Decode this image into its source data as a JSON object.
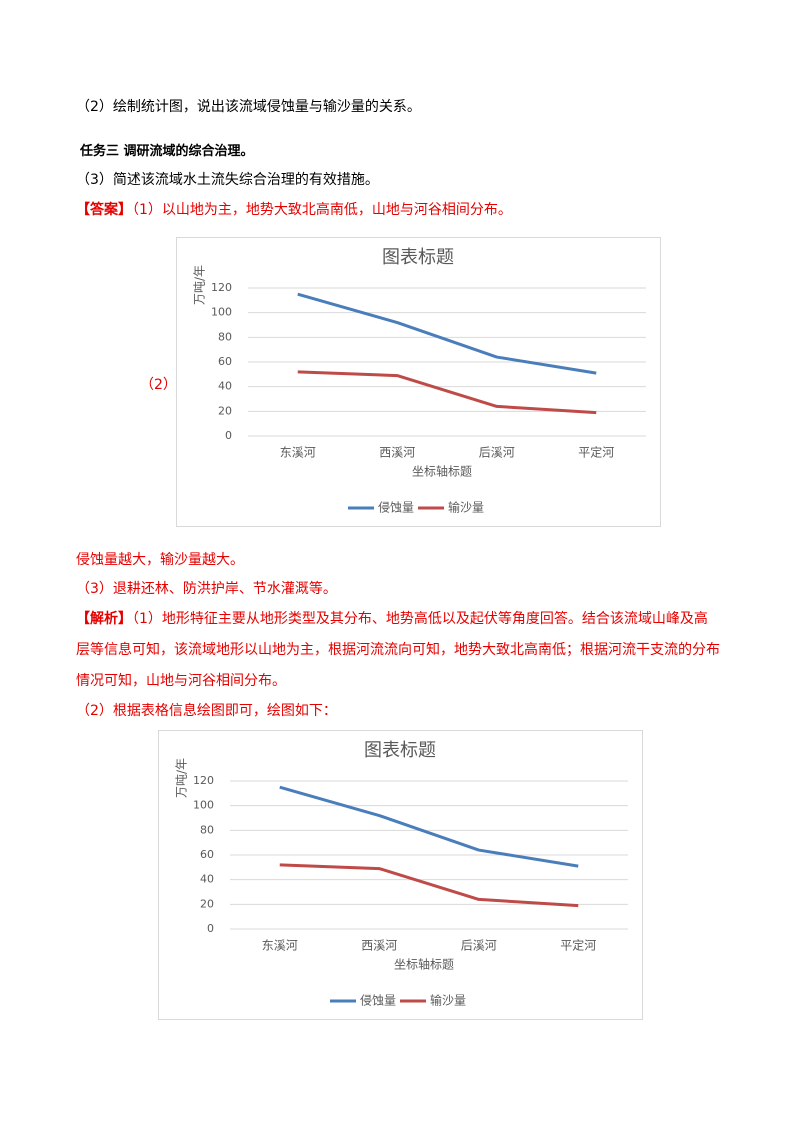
{
  "document": {
    "question2": "（2）绘制统计图，说出该流域侵蚀量与输沙量的关系。",
    "task3": "任务三  调研流域的综合治理。",
    "question3": "（3）简述该流域水土流失综合治理的有效措施。",
    "answer": {
      "label": "【答案】",
      "text": "（1）以山地为主，地势大致北高南低，山地与河谷相间分布。"
    },
    "answer_chart_label": "（2）",
    "answer_2": "侵蚀量越大，输沙量越大。",
    "answer_3": "（3）退耕还林、防洪护岸、节水灌溉等。",
    "analysis": {
      "label": "【解析】",
      "lines": [
        "（1）地形特征主要从地形类型及其分布、地势高低以及起伏等角度回答。结合该流域山峰及高",
        "层等信息可知，该流域地形以山地为主，根据河流流向可知，地势大致北高南低；根据河流干支流的分布",
        "情况可知，山地与河谷相间分布。"
      ]
    },
    "analysis_2": "（2）根据表格信息绘图即可，绘图如下："
  },
  "chart_data": [
    {
      "type": "line",
      "title": "图表标题",
      "ylabel": "万吨/年",
      "xlabel": "坐标轴标题",
      "categories": [
        "东溪河",
        "西溪河",
        "后溪河",
        "平定河"
      ],
      "series": [
        {
          "name": "侵蚀量",
          "color": "#4a7ebb",
          "values": [
            115,
            92,
            64,
            51
          ]
        },
        {
          "name": "输沙量",
          "color": "#be4b48",
          "values": [
            52,
            49,
            24,
            19
          ]
        }
      ],
      "ylim": [
        0,
        120
      ],
      "yticks": [
        0,
        20,
        40,
        60,
        80,
        100,
        120
      ],
      "grid": true,
      "legend": "bottom"
    },
    {
      "type": "line",
      "title": "图表标题",
      "ylabel": "万吨/年",
      "xlabel": "坐标轴标题",
      "categories": [
        "东溪河",
        "西溪河",
        "后溪河",
        "平定河"
      ],
      "series": [
        {
          "name": "侵蚀量",
          "color": "#4a7ebb",
          "values": [
            115,
            92,
            64,
            51
          ]
        },
        {
          "name": "输沙量",
          "color": "#be4b48",
          "values": [
            52,
            49,
            24,
            19
          ]
        }
      ],
      "ylim": [
        0,
        120
      ],
      "yticks": [
        0,
        20,
        40,
        60,
        80,
        100,
        120
      ],
      "grid": true,
      "legend": "bottom"
    }
  ]
}
